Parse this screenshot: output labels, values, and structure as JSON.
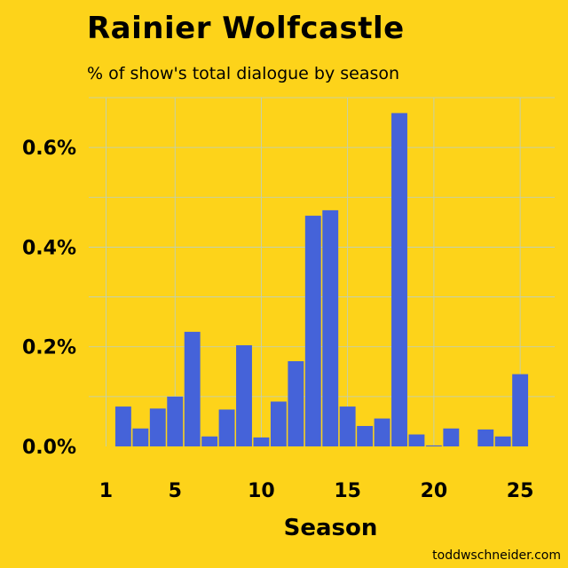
{
  "title": "Rainier Wolfcastle",
  "subtitle": "% of show's total dialogue by season",
  "credit": "toddwschneider.com",
  "colors": {
    "background": "#FDD31A",
    "bar": "#4563D9",
    "grid": "#B9CFC7"
  },
  "chart_data": {
    "type": "bar",
    "xlabel": "Season",
    "ylabel": "",
    "x_ticks": [
      1,
      5,
      10,
      15,
      20,
      25
    ],
    "y_ticks": [
      0.0,
      0.2,
      0.4,
      0.6
    ],
    "y_tick_labels": [
      "0.0%",
      "0.2%",
      "0.4%",
      "0.6%"
    ],
    "xlim": [
      0,
      27
    ],
    "ylim": [
      0,
      0.7
    ],
    "grid": true,
    "x": [
      2,
      3,
      4,
      5,
      6,
      7,
      8,
      9,
      10,
      11,
      12,
      13,
      14,
      15,
      16,
      17,
      18,
      19,
      20,
      21,
      23,
      24,
      25
    ],
    "values": [
      0.08,
      0.036,
      0.076,
      0.1,
      0.23,
      0.02,
      0.074,
      0.203,
      0.018,
      0.09,
      0.171,
      0.463,
      0.474,
      0.08,
      0.041,
      0.056,
      0.669,
      0.024,
      0.002,
      0.036,
      0.034,
      0.02,
      0.145
    ]
  }
}
